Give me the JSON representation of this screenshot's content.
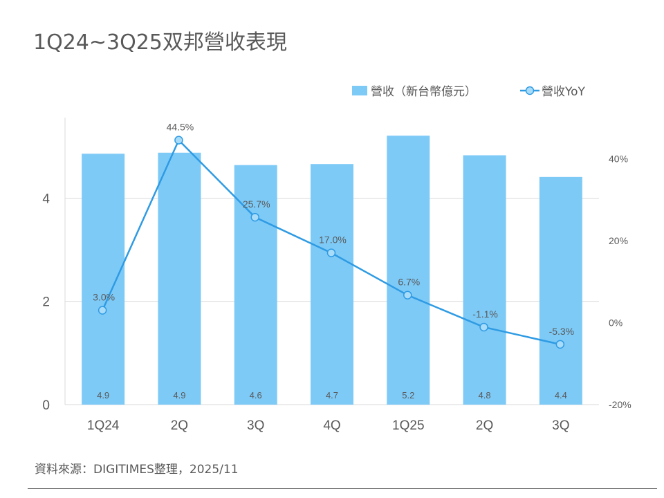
{
  "title": "1Q24~3Q25双邦營收表現",
  "source": "資料來源：DIGITIMES整理，2025/11",
  "chart_data": {
    "type": "bar+line",
    "title": "1Q24~3Q25双邦營收表現",
    "categories": [
      "1Q24",
      "2Q",
      "3Q",
      "4Q",
      "1Q25",
      "2Q",
      "3Q"
    ],
    "series": [
      {
        "name": "營收（新台幣億元）",
        "type": "bar",
        "axis": "left",
        "values": [
          4.86,
          4.88,
          4.64,
          4.66,
          5.21,
          4.83,
          4.41
        ],
        "labels": [
          "4.9",
          "4.9",
          "4.6",
          "4.7",
          "5.2",
          "4.8",
          "4.4"
        ],
        "color": "#7ecaf7"
      },
      {
        "name": "營收YoY",
        "type": "line",
        "axis": "right",
        "values": [
          3.0,
          44.5,
          25.7,
          17.0,
          6.7,
          -1.1,
          -5.3
        ],
        "labels": [
          "3.0%",
          "44.5%",
          "25.7%",
          "17.0%",
          "6.7%",
          "-1.1%",
          "-5.3%"
        ],
        "color": "#2f9be3"
      }
    ],
    "left_axis": {
      "min": 0,
      "max": 5.56,
      "ticks": [
        0,
        2,
        4
      ],
      "tick_labels": [
        "0",
        "2",
        "4"
      ]
    },
    "right_axis": {
      "min": -20,
      "max": 50,
      "ticks": [
        -20,
        0,
        20,
        40
      ],
      "tick_labels": [
        "-20%",
        "0%",
        "20%",
        "40%"
      ]
    },
    "grid": true,
    "legend_position": "top-right"
  }
}
